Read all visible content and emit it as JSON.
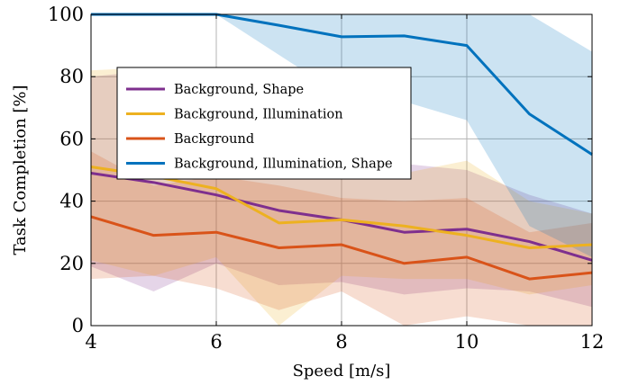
{
  "chart_data": {
    "type": "line",
    "xlabel": "Speed [m/s]",
    "ylabel": "Task Completion [%]",
    "xlim": [
      4,
      12
    ],
    "ylim": [
      0,
      100
    ],
    "xticks": [
      "4",
      "6",
      "8",
      "10",
      "12"
    ],
    "yticks": [
      "0",
      "20",
      "40",
      "60",
      "80",
      "100"
    ],
    "grid": true,
    "legend_position": "upper-left",
    "x": [
      4,
      5,
      6,
      7,
      8,
      9,
      10,
      11,
      12
    ],
    "series": [
      {
        "name": "Background, Shape",
        "color": "#7e2f8e",
        "values": [
          49,
          46,
          42,
          37,
          34,
          30,
          31,
          27,
          21
        ],
        "lower": [
          19,
          11,
          20,
          13,
          14,
          10,
          12,
          11,
          6
        ],
        "upper": [
          80,
          82,
          64,
          61,
          56,
          52,
          50,
          42,
          36
        ]
      },
      {
        "name": "Background, Illumination",
        "color": "#edb120",
        "values": [
          51,
          48,
          44,
          33,
          34,
          32,
          29,
          25,
          26
        ],
        "lower": [
          21,
          16,
          22,
          0,
          16,
          15,
          15,
          10,
          13
        ],
        "upper": [
          82,
          83,
          66,
          62,
          57,
          49,
          53,
          40,
          36
        ]
      },
      {
        "name": "Background",
        "color": "#d95319",
        "values": [
          35,
          29,
          30,
          25,
          26,
          20,
          22,
          15,
          17
        ],
        "lower": [
          15,
          16,
          12,
          5,
          11,
          0,
          3,
          0,
          0
        ],
        "upper": [
          56,
          45,
          48,
          45,
          41,
          40,
          41,
          30,
          33
        ]
      },
      {
        "name": "Background, Illumination, Shape",
        "color": "#0072bd",
        "values": [
          100,
          100,
          100,
          96.5,
          92.8,
          93.1,
          90,
          68,
          55
        ],
        "lower": [
          100,
          100,
          100,
          87,
          74,
          72,
          66,
          32,
          22
        ],
        "upper": [
          100,
          100,
          100,
          100,
          100,
          100,
          100,
          100,
          88
        ]
      }
    ]
  }
}
